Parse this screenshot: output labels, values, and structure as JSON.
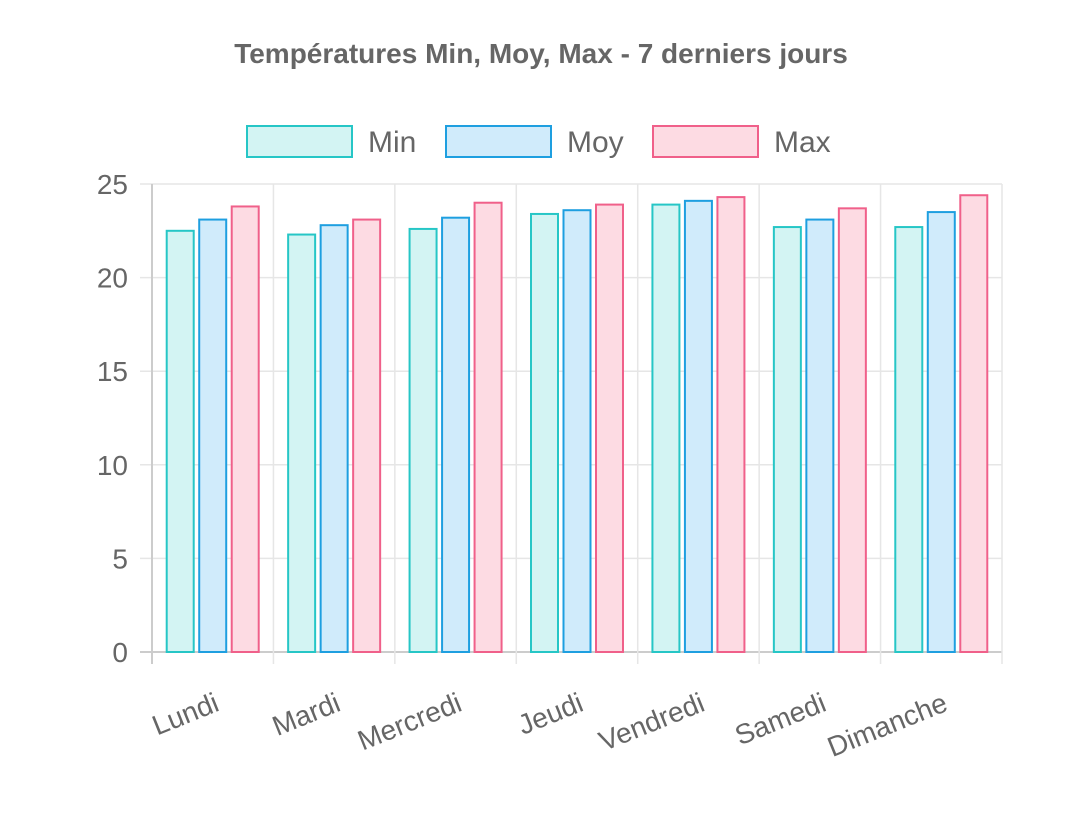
{
  "chart_data": {
    "type": "bar",
    "title": "Températures Min, Moy, Max - 7 derniers jours",
    "categories": [
      "Lundi",
      "Mardi",
      "Mercredi",
      "Jeudi",
      "Vendredi",
      "Samedi",
      "Dimanche"
    ],
    "series": [
      {
        "name": "Min",
        "values": [
          22.5,
          22.3,
          22.6,
          23.4,
          23.9,
          22.7,
          22.7
        ],
        "border_color": "#26c6c6",
        "fill_color": "#d3f4f3"
      },
      {
        "name": "Moy",
        "values": [
          23.1,
          22.8,
          23.2,
          23.6,
          24.1,
          23.1,
          23.5
        ],
        "border_color": "#1e9fe0",
        "fill_color": "#d0ebfb"
      },
      {
        "name": "Max",
        "values": [
          23.8,
          23.1,
          24.0,
          23.9,
          24.3,
          23.7,
          24.4
        ],
        "border_color": "#f0608a",
        "fill_color": "#fddbe3"
      }
    ],
    "xlabel": "",
    "ylabel": "",
    "ylim": [
      0,
      25
    ],
    "yticks": [
      0,
      5,
      10,
      15,
      20,
      25
    ],
    "grid": true,
    "legend_position": "top"
  }
}
